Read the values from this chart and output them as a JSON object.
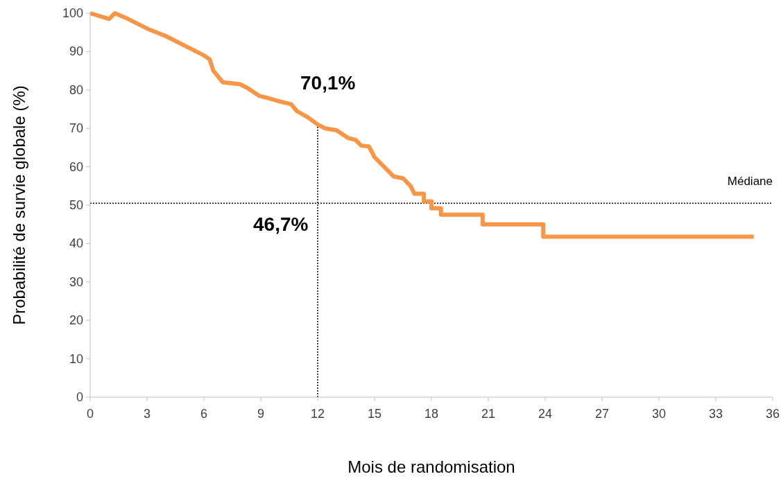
{
  "chart_data": {
    "type": "line",
    "xlabel": "Mois de randomisation",
    "ylabel": "Probabilité de survie globale (%)",
    "xlim": [
      0,
      36
    ],
    "xticks": [
      0,
      3,
      6,
      9,
      12,
      15,
      18,
      21,
      24,
      27,
      30,
      33,
      36
    ],
    "ylim": [
      0,
      100
    ],
    "yticks": [
      0,
      10,
      20,
      30,
      40,
      50,
      60,
      70,
      80,
      90,
      100
    ],
    "grid": false,
    "marker": "none",
    "line_style": "solid",
    "series": [
      {
        "color": "#f79646",
        "x": [
          0,
          1,
          1.3,
          2,
          3,
          4,
          5,
          6,
          6.3,
          6.5,
          7,
          7.9,
          8.3,
          8.9,
          9.3,
          10,
          10.6,
          10.9,
          11.5,
          12,
          12.4,
          13,
          13.6,
          14,
          14.3,
          14.7,
          15,
          15.5,
          16,
          16.5,
          16.9,
          17.1,
          17.6,
          17.6,
          18,
          18,
          18.5,
          18.5,
          20.7,
          20.7,
          23.9,
          23.9,
          35
        ],
        "values": [
          100,
          98.5,
          100,
          98.5,
          96,
          94,
          91.5,
          89,
          88,
          85,
          82,
          81.5,
          80.5,
          78.5,
          78,
          77,
          76.3,
          74.5,
          72.8,
          71,
          70,
          69.5,
          67.5,
          67,
          65.5,
          65.3,
          62.5,
          60,
          57.5,
          57,
          55,
          53,
          53,
          51,
          51,
          49.2,
          49.2,
          47.5,
          47.5,
          45,
          45,
          41.8,
          41.8
        ]
      }
    ],
    "ref_lines": [
      {
        "axis": "y",
        "value": 50.5,
        "label": "Médiane",
        "line_style": "dotted",
        "color": "#000000"
      },
      {
        "axis": "x",
        "value": 12,
        "line_style": "dotted",
        "color": "#000000"
      }
    ],
    "annotations": [
      "70,1%",
      "46,7%"
    ]
  }
}
